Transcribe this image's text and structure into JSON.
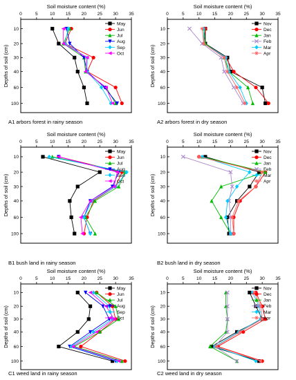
{
  "figure": {
    "x_axis_label": "Soil moisture content (%)",
    "y_axis_label": "Depths of soil (cm)",
    "y_ticks": [
      "10",
      "20",
      "30",
      "40",
      "60",
      "100"
    ],
    "x_ticks": [
      "0",
      "5",
      "10",
      "15",
      "20",
      "25",
      "30",
      "35"
    ]
  },
  "chart_data": [
    {
      "type": "line",
      "panel": "A1",
      "caption": "A1    arbors forest in rainy season",
      "xlabel": "Soil moisture content (%)",
      "ylabel": "Depths of soil (cm)",
      "xlim": [
        0,
        35
      ],
      "depths": [
        "10",
        "20",
        "30",
        "40",
        "60",
        "100"
      ],
      "series": [
        {
          "name": "May",
          "color": "#000000",
          "marker": "square",
          "values": [
            10,
            12,
            17,
            18,
            20,
            21
          ]
        },
        {
          "name": "Jun",
          "color": "#ff0000",
          "marker": "circle",
          "values": [
            16,
            14,
            23,
            21,
            30,
            32
          ]
        },
        {
          "name": "Jul",
          "color": "#00bb00",
          "marker": "triangle-up",
          "values": [
            15.5,
            13.5,
            20,
            20.5,
            27,
            30
          ]
        },
        {
          "name": "Aug",
          "color": "#0000ff",
          "marker": "triangle-down",
          "values": [
            14.5,
            15.5,
            20,
            21,
            26.5,
            30.5
          ]
        },
        {
          "name": "Sep",
          "color": "#00ccff",
          "marker": "diamond",
          "values": [
            15,
            14,
            21,
            21,
            25.5,
            28.5
          ]
        },
        {
          "name": "Oct",
          "color": "#ff00ff",
          "marker": "triangle-left",
          "values": [
            13.5,
            13.5,
            21,
            20.5,
            27,
            29
          ]
        }
      ]
    },
    {
      "type": "line",
      "panel": "A2",
      "caption": "A2     arbors forest in dry season",
      "xlabel": "Soil moisture content (%)",
      "ylabel": "Depths of soil (cm)",
      "xlim": [
        0,
        35
      ],
      "depths": [
        "10",
        "20",
        "30",
        "40",
        "60",
        "100"
      ],
      "series": [
        {
          "name": "Nov",
          "color": "#000000",
          "marker": "square",
          "values": [
            12,
            12,
            19,
            20,
            30,
            31
          ]
        },
        {
          "name": "Dec",
          "color": "#ff0000",
          "marker": "circle",
          "values": [
            12,
            11.5,
            18.5,
            21,
            28,
            32
          ]
        },
        {
          "name": "Jan",
          "color": "#00bb00",
          "marker": "triangle-up",
          "values": [
            11.5,
            12,
            18,
            19.5,
            25.5,
            27
          ]
        },
        {
          "name": "Feb",
          "color": "#aa88cc",
          "marker": "x",
          "values": [
            7,
            11,
            17,
            18,
            21,
            24
          ]
        },
        {
          "name": "Mar",
          "color": "#00ccff",
          "marker": "diamond",
          "values": [
            11.5,
            11.5,
            18.5,
            19.5,
            23,
            25
          ]
        },
        {
          "name": "Apr",
          "color": "#ff6666",
          "marker": "star",
          "values": [
            11,
            11.5,
            18,
            19,
            22,
            24.5
          ]
        }
      ]
    },
    {
      "type": "line",
      "panel": "B1",
      "caption": "B1      bush land  in rainy season",
      "xlabel": "Soil moisture content (%)",
      "ylabel": "Depths of soil (cm)",
      "xlim": [
        0,
        35
      ],
      "depths": [
        "10",
        "20",
        "30",
        "40",
        "60",
        "100"
      ],
      "series": [
        {
          "name": "May",
          "color": "#000000",
          "marker": "square",
          "values": [
            7,
            25,
            18,
            15.5,
            16,
            17
          ]
        },
        {
          "name": "Jun",
          "color": "#ff0000",
          "marker": "circle",
          "values": [
            12,
            32,
            30,
            23,
            21,
            20
          ]
        },
        {
          "name": "Jul",
          "color": "#00bb00",
          "marker": "triangle-up",
          "values": [
            10,
            33,
            31,
            23.5,
            20.5,
            23.5
          ]
        },
        {
          "name": "Aug",
          "color": "#0000ff",
          "marker": "triangle-down",
          "values": [
            12,
            31,
            29,
            22,
            20,
            22
          ]
        },
        {
          "name": "Sep",
          "color": "#00ccff",
          "marker": "diamond",
          "values": [
            9,
            33.5,
            30,
            22.5,
            20,
            22
          ]
        },
        {
          "name": "Oct",
          "color": "#ff00ff",
          "marker": "triangle-left",
          "values": [
            12,
            30.5,
            29.5,
            22,
            19,
            19.5
          ]
        }
      ]
    },
    {
      "type": "line",
      "panel": "B2",
      "caption": "B2     bush land  in dry season",
      "xlabel": "Soil moisture content (%)",
      "ylabel": "Depths of soil (cm)",
      "xlim": [
        0,
        35
      ],
      "depths": [
        "10",
        "20",
        "30",
        "40",
        "60",
        "100"
      ],
      "series": [
        {
          "name": "Nov",
          "color": "#000000",
          "marker": "square",
          "values": [
            12,
            29,
            26,
            22,
            19,
            19.5
          ]
        },
        {
          "name": "Dec",
          "color": "#ff0000",
          "marker": "circle",
          "values": [
            10,
            31,
            28,
            23,
            21,
            21
          ]
        },
        {
          "name": "Jan",
          "color": "#00bb00",
          "marker": "triangle-up",
          "values": [
            11,
            31,
            17,
            14,
            17,
            20
          ]
        },
        {
          "name": "Feb",
          "color": "#aa88cc",
          "marker": "x",
          "values": [
            5,
            20,
            20.5,
            19.5,
            20,
            20
          ]
        },
        {
          "name": "Mar",
          "color": "#00ccff",
          "marker": "diamond",
          "values": [
            11,
            26,
            22,
            19,
            18.5,
            20
          ]
        },
        {
          "name": "Apr",
          "color": "#ff6666",
          "marker": "star",
          "values": [
            10,
            30,
            28,
            22.5,
            20.5,
            21
          ]
        }
      ]
    },
    {
      "type": "line",
      "panel": "C1",
      "caption": "C1        weed land in rainy season",
      "xlabel": "Soil moisture content (%)",
      "ylabel": "Depths of soil (cm)",
      "xlim": [
        0,
        35
      ],
      "depths": [
        "10",
        "20",
        "30",
        "40",
        "60",
        "100"
      ],
      "series": [
        {
          "name": "May",
          "color": "#000000",
          "marker": "square",
          "values": [
            18,
            22,
            21.5,
            18,
            12,
            29
          ]
        },
        {
          "name": "Jun",
          "color": "#ff0000",
          "marker": "circle",
          "values": [
            24,
            29,
            30,
            25,
            19,
            33
          ]
        },
        {
          "name": "Jul",
          "color": "#00bb00",
          "marker": "triangle-up",
          "values": [
            24,
            30,
            31,
            25,
            17,
            32
          ]
        },
        {
          "name": "Aug",
          "color": "#0000ff",
          "marker": "triangle-down",
          "values": [
            20.5,
            26,
            28,
            22,
            15.5,
            30
          ]
        },
        {
          "name": "Sep",
          "color": "#00ccff",
          "marker": "diamond",
          "values": [
            23,
            28,
            29,
            23,
            16,
            30.5
          ]
        },
        {
          "name": "Oct",
          "color": "#ff00ff",
          "marker": "triangle-left",
          "values": [
            22,
            27,
            29.5,
            24,
            16.5,
            31
          ]
        }
      ]
    },
    {
      "type": "line",
      "panel": "C2",
      "caption": "C2        weed land in dry season",
      "xlabel": "Soil moisture content (%)",
      "ylabel": "Depths of soil (cm)",
      "xlim": [
        0,
        35
      ],
      "depths": [
        "10",
        "20",
        "30",
        "40",
        "60",
        "100"
      ],
      "series": [
        {
          "name": "Nov",
          "color": "#000000",
          "marker": "square",
          "values": [
            26,
            28,
            30,
            22,
            14,
            29
          ]
        },
        {
          "name": "Dec",
          "color": "#ff0000",
          "marker": "circle",
          "values": [
            28,
            30,
            31,
            24,
            16,
            30
          ]
        },
        {
          "name": "Jan",
          "color": "#00bb00",
          "marker": "triangle-up",
          "values": [
            18.5,
            18.5,
            19,
            18.5,
            13.5,
            22
          ]
        },
        {
          "name": "Feb",
          "color": "#aa88cc",
          "marker": "x",
          "values": [
            19,
            19,
            19,
            19,
            15,
            22
          ]
        },
        {
          "name": "Mar",
          "color": "#00ccff",
          "marker": "diamond",
          "values": [
            27,
            29,
            29.5,
            22.5,
            15,
            28
          ]
        },
        {
          "name": "Apr",
          "color": "#ff6666",
          "marker": "star",
          "values": [
            27.5,
            29.5,
            30,
            23,
            15.5,
            29.5
          ]
        }
      ]
    }
  ]
}
